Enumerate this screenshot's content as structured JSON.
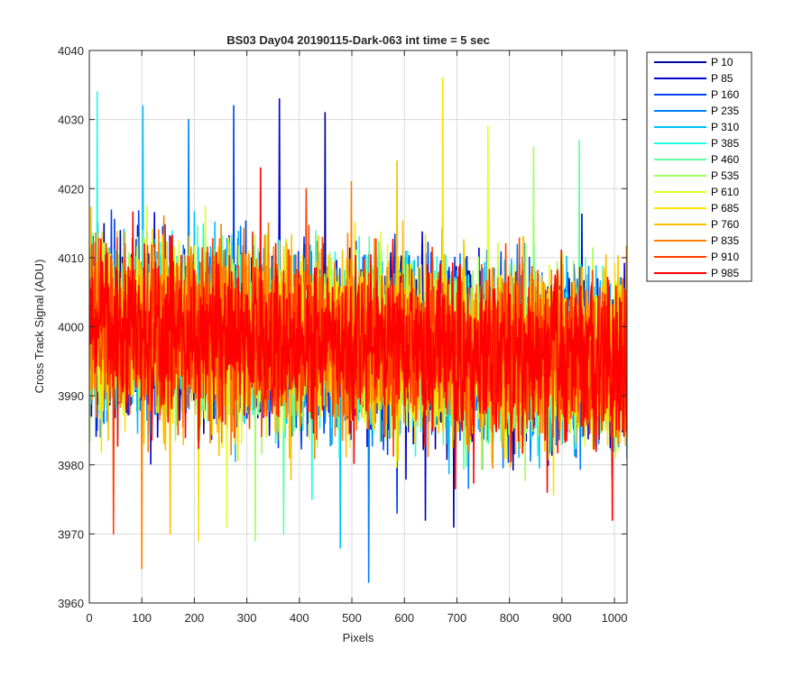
{
  "chart_data": {
    "type": "line",
    "title": "BS03 Day04 20190115-Dark-063 int time = 5 sec",
    "xlabel": "Pixels",
    "ylabel": "Cross Track Signal (ADU)",
    "xlim": [
      0,
      1024
    ],
    "ylim": [
      3960,
      4040
    ],
    "x_ticks": [
      0,
      100,
      200,
      300,
      400,
      500,
      600,
      700,
      800,
      900,
      1000
    ],
    "y_ticks": [
      3960,
      3970,
      3980,
      3990,
      4000,
      4010,
      4020,
      4030,
      4040
    ],
    "grid": true,
    "legend_position": "outside-right",
    "x_points": 1024,
    "series": [
      {
        "name": "P 10",
        "color": "#00009A",
        "mean": 3997,
        "spread": 6.0,
        "max": 4031,
        "min": 3971
      },
      {
        "name": "P 85",
        "color": "#0000D4",
        "mean": 3997,
        "spread": 6.0,
        "max": 4033,
        "min": 3972
      },
      {
        "name": "P 160",
        "color": "#0040F0",
        "mean": 3997,
        "spread": 6.0,
        "max": 4032,
        "min": 3973
      },
      {
        "name": "P 235",
        "color": "#0080FF",
        "mean": 3997,
        "spread": 6.0,
        "max": 4030,
        "min": 3963
      },
      {
        "name": "P 310",
        "color": "#00BFFF",
        "mean": 3997,
        "spread": 6.0,
        "max": 4032,
        "min": 3968
      },
      {
        "name": "P 385",
        "color": "#20FFDF",
        "mean": 3997,
        "spread": 6.0,
        "max": 4034,
        "min": 3975
      },
      {
        "name": "P 460",
        "color": "#60FFA0",
        "mean": 3997,
        "spread": 6.0,
        "max": 4027,
        "min": 3970
      },
      {
        "name": "P 535",
        "color": "#9FFF60",
        "mean": 3997,
        "spread": 6.0,
        "max": 4026,
        "min": 3969
      },
      {
        "name": "P 610",
        "color": "#DFFF20",
        "mean": 3997,
        "spread": 6.0,
        "max": 4029,
        "min": 3971
      },
      {
        "name": "P 685",
        "color": "#FFE000",
        "mean": 3997,
        "spread": 6.0,
        "max": 4036,
        "min": 3969
      },
      {
        "name": "P 760",
        "color": "#FFBF00",
        "mean": 3997,
        "spread": 6.0,
        "max": 4024,
        "min": 3970
      },
      {
        "name": "P 835",
        "color": "#FF8000",
        "mean": 3997,
        "spread": 6.0,
        "max": 4021,
        "min": 3965
      },
      {
        "name": "P 910",
        "color": "#FF4000",
        "mean": 3997,
        "spread": 6.0,
        "max": 4020,
        "min": 3970
      },
      {
        "name": "P 985",
        "color": "#FF0000",
        "mean": 3997,
        "spread": 6.0,
        "max": 4023,
        "min": 3972
      }
    ]
  }
}
